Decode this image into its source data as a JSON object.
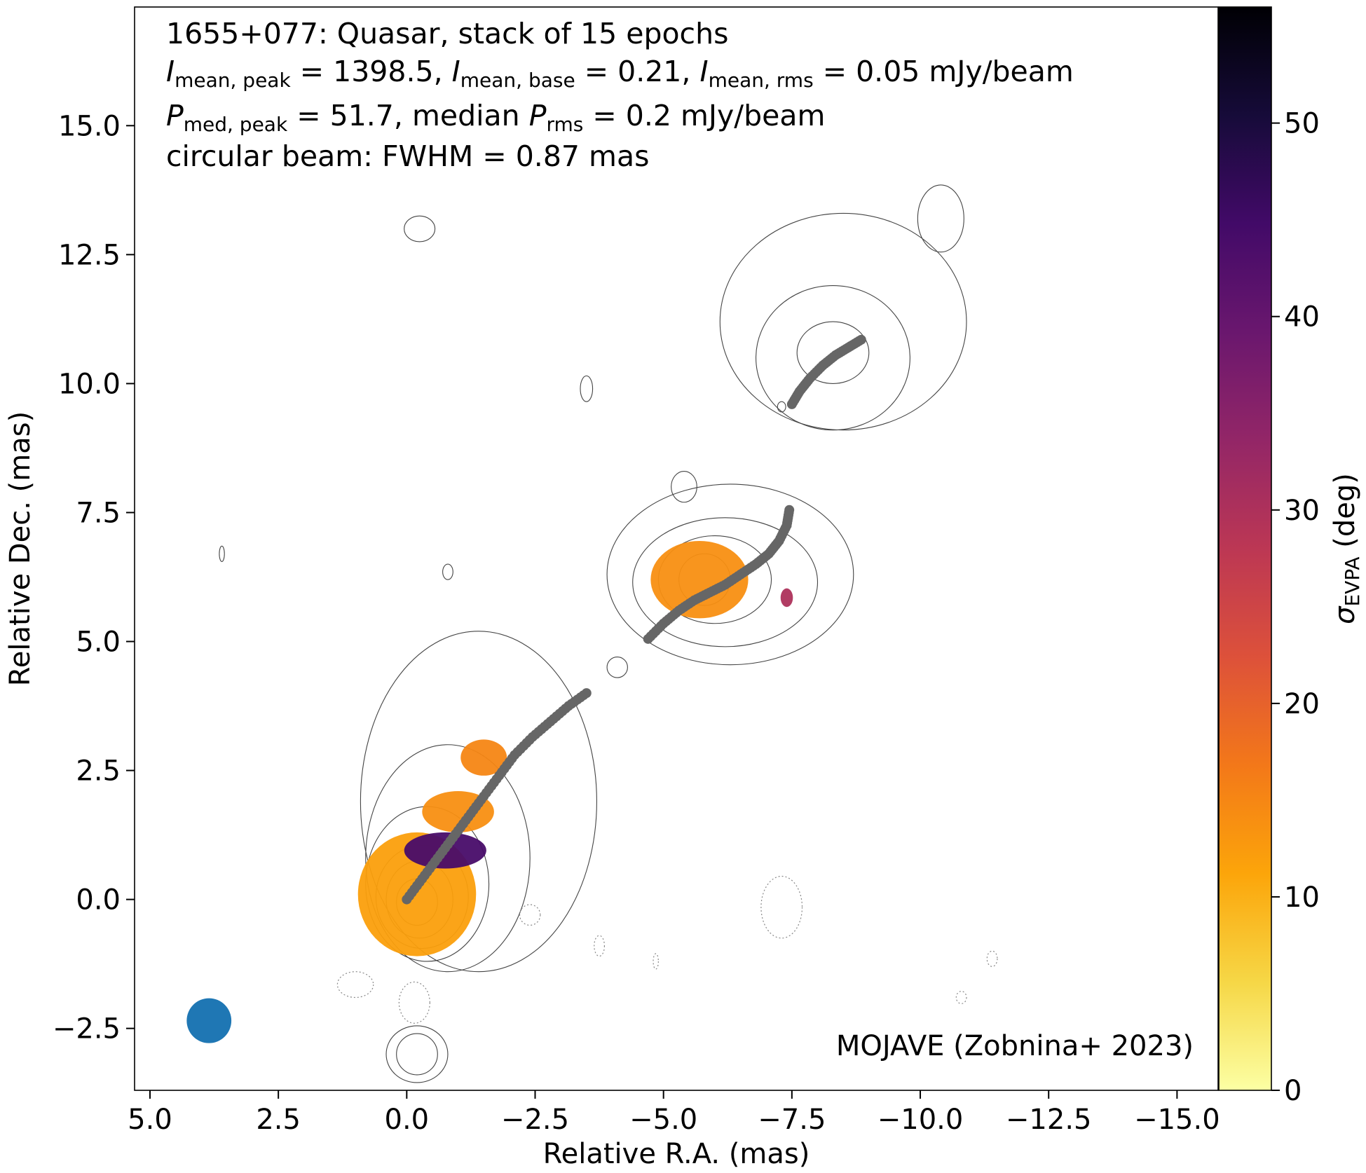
{
  "chart_data": {
    "type": "image",
    "title": "1655+077: Quasar, stack of 15 epochs",
    "info": {
      "line1": "1655+077: Quasar, stack of 15 epochs",
      "line2": [
        {
          "sym": "I",
          "sub": "mean, peak",
          "text": " = 1398.5, "
        },
        {
          "sym": "I",
          "sub": "mean, base",
          "text": " = 0.21, "
        },
        {
          "sym": "I",
          "sub": "mean, rms",
          "text": " = 0.05 mJy/beam"
        }
      ],
      "line3": [
        {
          "pre": "",
          "sym": "P",
          "sub": "med, peak",
          "text": " = 51.7, "
        },
        {
          "pre": "median ",
          "sym": "P",
          "sub": "rms",
          "text": " = 0.2 mJy/beam"
        }
      ],
      "line4": "circular beam: FWHM = 0.87 mas"
    },
    "xlabel": "Relative R.A. (mas)",
    "ylabel": "Relative Dec. (mas)",
    "xlim": [
      5.3,
      -15.8
    ],
    "ylim": [
      -3.7,
      17.3
    ],
    "xticks": [
      {
        "v": 5.0,
        "label": "5.0"
      },
      {
        "v": 2.5,
        "label": "2.5"
      },
      {
        "v": 0.0,
        "label": "0.0"
      },
      {
        "v": -2.5,
        "label": "−2.5"
      },
      {
        "v": -5.0,
        "label": "−5.0"
      },
      {
        "v": -7.5,
        "label": "−7.5"
      },
      {
        "v": -10.0,
        "label": "−10.0"
      },
      {
        "v": -12.5,
        "label": "−12.5"
      },
      {
        "v": -15.0,
        "label": "−15.0"
      }
    ],
    "yticks": [
      {
        "v": -2.5,
        "label": "−2.5"
      },
      {
        "v": 0.0,
        "label": "0.0"
      },
      {
        "v": 2.5,
        "label": "2.5"
      },
      {
        "v": 5.0,
        "label": "5.0"
      },
      {
        "v": 7.5,
        "label": "7.5"
      },
      {
        "v": 10.0,
        "label": "10.0"
      },
      {
        "v": 12.5,
        "label": "12.5"
      },
      {
        "v": 15.0,
        "label": "15.0"
      }
    ],
    "colorbar": {
      "label_sym": "σ",
      "label_sub": "EVPA",
      "label_unit": " (deg)",
      "range": [
        0,
        56
      ],
      "colormap": "inferno_r",
      "ticks": [
        {
          "v": 0,
          "label": "0"
        },
        {
          "v": 10,
          "label": "10"
        },
        {
          "v": 20,
          "label": "20"
        },
        {
          "v": 30,
          "label": "30"
        },
        {
          "v": 40,
          "label": "40"
        },
        {
          "v": 50,
          "label": "50"
        }
      ],
      "stops": [
        "#fcffa4",
        "#f6d746",
        "#fca50a",
        "#f37819",
        "#dd513a",
        "#bc3754",
        "#932667",
        "#6a176e",
        "#420a68",
        "#160b39",
        "#000004"
      ]
    },
    "beam": {
      "ra": 3.85,
      "dec": -2.35,
      "fwhm": 0.87,
      "color": "#1f77b4"
    },
    "ridgeline": {
      "color": "#666666",
      "points": [
        [
          0.0,
          0.0
        ],
        [
          -0.3,
          0.4
        ],
        [
          -0.6,
          0.8
        ],
        [
          -0.9,
          1.2
        ],
        [
          -1.2,
          1.6
        ],
        [
          -1.5,
          2.0
        ],
        [
          -1.8,
          2.4
        ],
        [
          -2.1,
          2.8
        ],
        [
          -2.45,
          3.15
        ],
        [
          -2.8,
          3.45
        ],
        [
          -3.15,
          3.75
        ],
        [
          -3.5,
          4.0
        ],
        [
          -4.7,
          5.05
        ],
        [
          -5.0,
          5.35
        ],
        [
          -5.3,
          5.6
        ],
        [
          -5.6,
          5.8
        ],
        [
          -5.9,
          5.95
        ],
        [
          -6.2,
          6.1
        ],
        [
          -6.5,
          6.3
        ],
        [
          -6.8,
          6.5
        ],
        [
          -7.05,
          6.7
        ],
        [
          -7.25,
          6.95
        ],
        [
          -7.4,
          7.25
        ],
        [
          -7.45,
          7.55
        ],
        [
          -7.5,
          9.6
        ],
        [
          -7.65,
          9.85
        ],
        [
          -7.85,
          10.1
        ],
        [
          -8.1,
          10.35
        ],
        [
          -8.35,
          10.55
        ],
        [
          -8.6,
          10.7
        ],
        [
          -8.85,
          10.85
        ]
      ]
    },
    "evpa_regions": [
      {
        "ra": -0.2,
        "dec": 0.1,
        "rx": 1.15,
        "ry": 1.2,
        "sigma": 12
      },
      {
        "ra": -0.75,
        "dec": 0.95,
        "rx": 0.8,
        "ry": 0.35,
        "sigma": 44
      },
      {
        "ra": -1.0,
        "dec": 1.7,
        "rx": 0.7,
        "ry": 0.4,
        "sigma": 14
      },
      {
        "ra": -1.5,
        "dec": 2.75,
        "rx": 0.45,
        "ry": 0.35,
        "sigma": 15
      },
      {
        "ra": -5.7,
        "dec": 6.2,
        "rx": 0.95,
        "ry": 0.75,
        "sigma": 14
      },
      {
        "ra": -7.4,
        "dec": 5.85,
        "rx": 0.12,
        "ry": 0.18,
        "sigma": 30
      }
    ],
    "contours": [
      {
        "ra": -0.2,
        "dec": -0.05,
        "rx": 0.4,
        "ry": 0.45,
        "style": "solid"
      },
      {
        "ra": -0.25,
        "dec": 0.0,
        "rx": 0.65,
        "ry": 0.75,
        "style": "solid"
      },
      {
        "ra": -0.3,
        "dec": 0.05,
        "rx": 0.9,
        "ry": 1.0,
        "style": "solid"
      },
      {
        "ra": -0.4,
        "dec": 0.3,
        "rx": 1.2,
        "ry": 1.5,
        "style": "solid"
      },
      {
        "ra": -0.8,
        "dec": 0.8,
        "rx": 1.6,
        "ry": 2.2,
        "style": "solid"
      },
      {
        "ra": -1.4,
        "dec": 1.9,
        "rx": 2.3,
        "ry": 3.3,
        "style": "solid"
      },
      {
        "ra": -5.8,
        "dec": 6.2,
        "rx": 0.5,
        "ry": 0.5,
        "style": "solid"
      },
      {
        "ra": -6.0,
        "dec": 6.2,
        "rx": 1.1,
        "ry": 0.85,
        "style": "solid"
      },
      {
        "ra": -6.2,
        "dec": 6.15,
        "rx": 1.8,
        "ry": 1.25,
        "style": "solid"
      },
      {
        "ra": -6.3,
        "dec": 6.3,
        "rx": 2.4,
        "ry": 1.75,
        "style": "solid"
      },
      {
        "ra": -8.3,
        "dec": 10.6,
        "rx": 0.7,
        "ry": 0.6,
        "style": "solid"
      },
      {
        "ra": -8.3,
        "dec": 10.5,
        "rx": 1.5,
        "ry": 1.4,
        "style": "solid"
      },
      {
        "ra": -8.5,
        "dec": 11.2,
        "rx": 2.4,
        "ry": 2.1,
        "style": "solid"
      },
      {
        "ra": -10.4,
        "dec": 13.2,
        "rx": 0.45,
        "ry": 0.65,
        "style": "solid"
      },
      {
        "ra": -0.2,
        "dec": -3.0,
        "rx": 0.4,
        "ry": 0.4,
        "style": "solid"
      },
      {
        "ra": -0.2,
        "dec": -3.0,
        "rx": 0.6,
        "ry": 0.55,
        "style": "solid"
      },
      {
        "ra": -0.25,
        "dec": 13.0,
        "rx": 0.3,
        "ry": 0.25,
        "style": "solid"
      },
      {
        "ra": -3.5,
        "dec": 9.9,
        "rx": 0.12,
        "ry": 0.25,
        "style": "solid"
      },
      {
        "ra": -5.4,
        "dec": 8.0,
        "rx": 0.25,
        "ry": 0.3,
        "style": "solid"
      },
      {
        "ra": -0.8,
        "dec": 6.35,
        "rx": 0.1,
        "ry": 0.15,
        "style": "solid"
      },
      {
        "ra": 3.6,
        "dec": 6.7,
        "rx": 0.05,
        "ry": 0.15,
        "style": "solid"
      },
      {
        "ra": -4.1,
        "dec": 4.5,
        "rx": 0.2,
        "ry": 0.2,
        "style": "solid"
      },
      {
        "ra": -7.3,
        "dec": 9.55,
        "rx": 0.08,
        "ry": 0.1,
        "style": "solid"
      },
      {
        "ra": -7.3,
        "dec": -0.15,
        "rx": 0.4,
        "ry": 0.6,
        "style": "dotted"
      },
      {
        "ra": 1.0,
        "dec": -1.65,
        "rx": 0.35,
        "ry": 0.25,
        "style": "dotted"
      },
      {
        "ra": -0.15,
        "dec": -2.0,
        "rx": 0.3,
        "ry": 0.4,
        "style": "dotted"
      },
      {
        "ra": -2.4,
        "dec": -0.3,
        "rx": 0.2,
        "ry": 0.2,
        "style": "dotted"
      },
      {
        "ra": -3.75,
        "dec": -0.9,
        "rx": 0.1,
        "ry": 0.2,
        "style": "dotted"
      },
      {
        "ra": -4.85,
        "dec": -1.2,
        "rx": 0.05,
        "ry": 0.15,
        "style": "dotted"
      },
      {
        "ra": -11.4,
        "dec": -1.15,
        "rx": 0.1,
        "ry": 0.15,
        "style": "dotted"
      },
      {
        "ra": -10.8,
        "dec": -1.9,
        "rx": 0.1,
        "ry": 0.12,
        "style": "dotted"
      }
    ],
    "credit": "MOJAVE (Zobnina+ 2023)",
    "grid": false
  }
}
